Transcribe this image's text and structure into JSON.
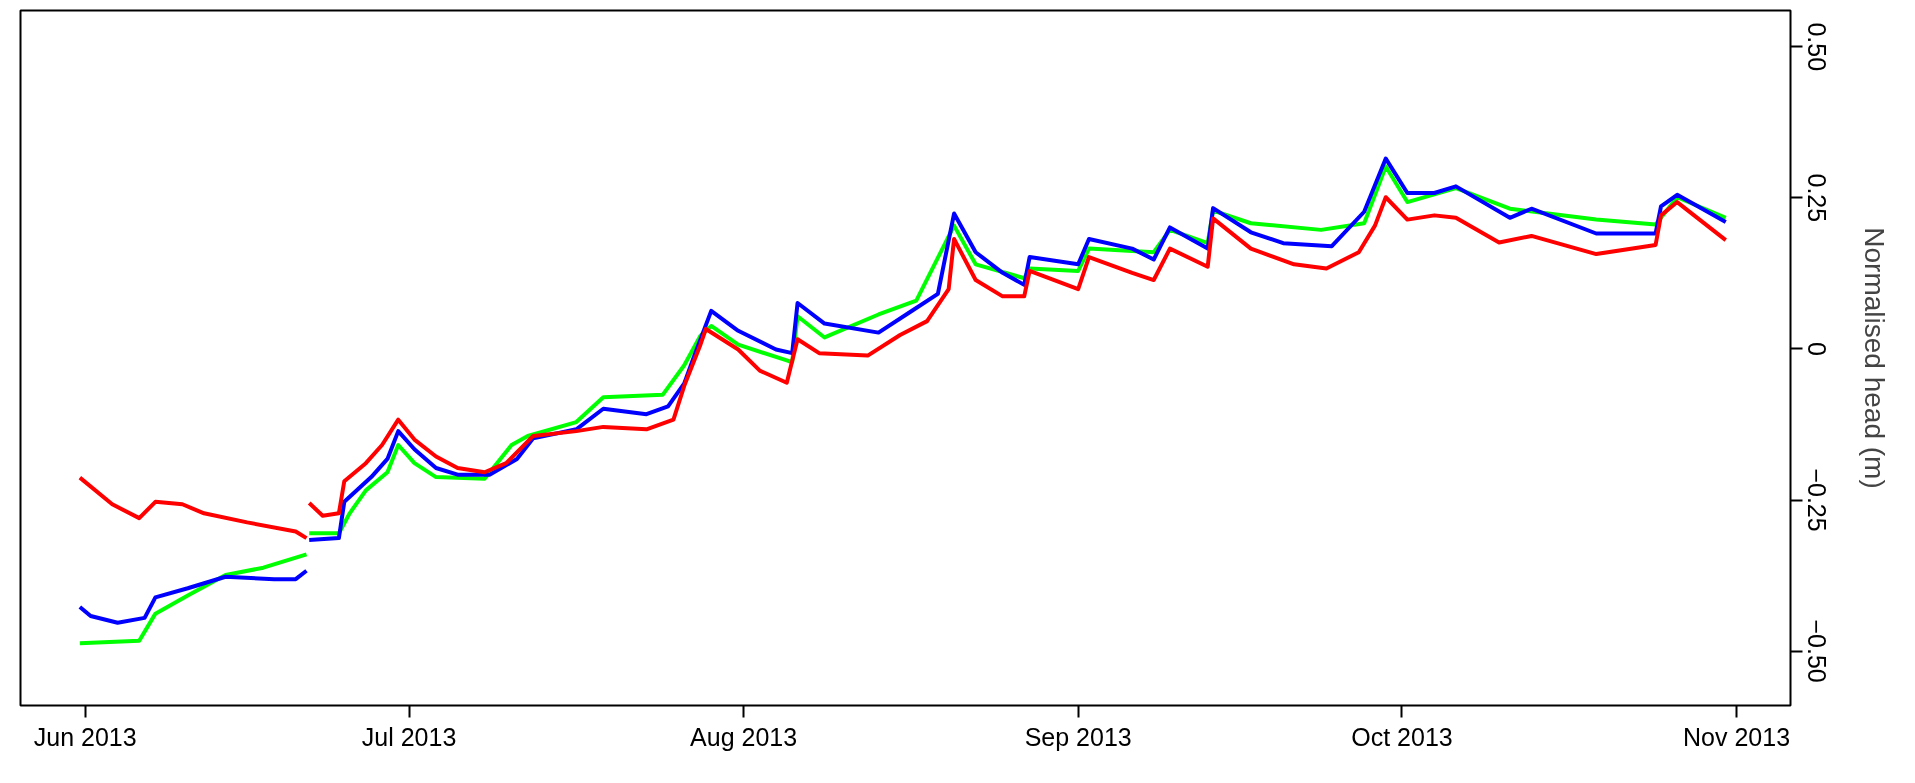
{
  "chart_data": {
    "type": "line",
    "ylabel": "Normalised head (m)",
    "xlim": [
      "2013-05-26",
      "2013-11-06"
    ],
    "xticks": [
      {
        "value": "2013-06-01",
        "label": "Jun 2013"
      },
      {
        "value": "2013-07-01",
        "label": "Jul 2013"
      },
      {
        "value": "2013-08-01",
        "label": "Aug 2013"
      },
      {
        "value": "2013-09-01",
        "label": "Sep 2013"
      },
      {
        "value": "2013-10-01",
        "label": "Oct 2013"
      },
      {
        "value": "2013-11-01",
        "label": "Nov 2013"
      }
    ],
    "ylim": [
      -0.59,
      0.56
    ],
    "yticks": [
      {
        "value": -0.5,
        "label": "−0.50"
      },
      {
        "value": -0.25,
        "label": "−0.25"
      },
      0,
      {
        "value": 0.25,
        "label": "0.25"
      },
      {
        "value": 0.5,
        "label": "0.50"
      }
    ],
    "grid": false,
    "marker": "none",
    "line_style": "solid",
    "series": [
      {
        "color": "#00ff00",
        "x": [
          "2013-05-31T12:00",
          "2013-06-06",
          "2013-06-07T12:00",
          "2013-06-10T12:00",
          "2013-06-14",
          "2013-06-17T12:00",
          "2013-06-21T12:00",
          "2013-06-21T15:00",
          "2013-06-21T18:00",
          "2013-06-24T12:00",
          "2013-06-25T12:00",
          "2013-06-27",
          "2013-06-29",
          "2013-06-30",
          "2013-07-01T12:00",
          "2013-07-03T12:00",
          "2013-07-08",
          "2013-07-10T12:00",
          "2013-07-12",
          "2013-07-16T12:00",
          "2013-07-19",
          "2013-07-24T12:00",
          "2013-07-26T12:00",
          "2013-07-28",
          "2013-07-29",
          "2013-07-31T12:00",
          "2013-08-05",
          "2013-08-05T12:00",
          "2013-08-06",
          "2013-08-08T12:00",
          "2013-08-13T12:00",
          "2013-08-17",
          "2013-08-20T12:00",
          "2013-08-22T12:00",
          "2013-08-27",
          "2013-08-27T12:00",
          "2013-09-01",
          "2013-09-02",
          "2013-09-08",
          "2013-09-09T12:00",
          "2013-09-13",
          "2013-09-13T12:00",
          "2013-09-17",
          "2013-09-23T12:00",
          "2013-09-27T12:00",
          "2013-09-29T12:00",
          "2013-10-01T12:00",
          "2013-10-06",
          "2013-10-11",
          "2013-10-19",
          "2013-10-24T12:00",
          "2013-10-26T12:00",
          "2013-10-31"
        ],
        "values": [
          -0.487,
          -0.483,
          -0.438,
          -0.408,
          -0.374,
          -0.362,
          -0.34,
          null,
          -0.305,
          -0.305,
          -0.272,
          -0.234,
          -0.204,
          -0.159,
          -0.189,
          -0.212,
          -0.215,
          -0.159,
          -0.144,
          -0.121,
          -0.08,
          -0.076,
          -0.027,
          0.022,
          0.038,
          0.007,
          -0.019,
          -0.022,
          0.054,
          0.019,
          0.057,
          0.08,
          0.204,
          0.14,
          0.117,
          0.133,
          0.129,
          0.166,
          0.16,
          0.197,
          0.175,
          0.229,
          0.208,
          0.197,
          0.208,
          0.302,
          0.243,
          0.266,
          0.232,
          0.214,
          0.206,
          0.251,
          0.217
        ]
      },
      {
        "color": "#0000ff",
        "x": [
          "2013-05-31T12:00",
          "2013-06-01T12:00",
          "2013-06-04",
          "2013-06-06T12:00",
          "2013-06-07T12:00",
          "2013-06-10T12:00",
          "2013-06-14",
          "2013-06-18T12:00",
          "2013-06-20T12:00",
          "2013-06-21T12:00",
          "2013-06-21T15:00",
          "2013-06-21T18:00",
          "2013-06-24T12:00",
          "2013-06-25",
          "2013-06-27T12:00",
          "2013-06-29",
          "2013-06-30",
          "2013-07-01T12:00",
          "2013-07-03T12:00",
          "2013-07-05T12:00",
          "2013-07-08T12:00",
          "2013-07-11",
          "2013-07-12T12:00",
          "2013-07-16T12:00",
          "2013-07-19",
          "2013-07-23",
          "2013-07-25",
          "2013-07-26T12:00",
          "2013-07-27T12:00",
          "2013-07-29",
          "2013-07-31T12:00",
          "2013-08-04",
          "2013-08-05T12:00",
          "2013-08-06",
          "2013-08-08T12:00",
          "2013-08-13T12:00",
          "2013-08-16T12:00",
          "2013-08-19",
          "2013-08-20T12:00",
          "2013-08-22T12:00",
          "2013-08-25",
          "2013-08-27",
          "2013-08-27T12:00",
          "2013-09-01",
          "2013-09-02",
          "2013-09-06",
          "2013-09-08",
          "2013-09-09T12:00",
          "2013-09-13",
          "2013-09-13T12:00",
          "2013-09-17",
          "2013-09-20",
          "2013-09-24T12:00",
          "2013-09-27T12:00",
          "2013-09-29T12:00",
          "2013-10-01T12:00",
          "2013-10-04",
          "2013-10-06",
          "2013-10-11",
          "2013-10-13",
          "2013-10-19",
          "2013-10-24T12:00",
          "2013-10-25",
          "2013-10-26T12:00",
          "2013-10-31"
        ],
        "values": [
          -0.427,
          -0.442,
          -0.453,
          -0.445,
          -0.411,
          -0.396,
          -0.377,
          -0.381,
          -0.381,
          -0.367,
          null,
          -0.316,
          -0.313,
          -0.253,
          -0.212,
          -0.182,
          -0.136,
          -0.166,
          -0.197,
          -0.208,
          -0.208,
          -0.182,
          -0.148,
          -0.133,
          -0.099,
          -0.108,
          -0.095,
          -0.057,
          -0.008,
          0.063,
          0.03,
          -0.001,
          -0.007,
          0.076,
          0.042,
          0.027,
          0.062,
          0.091,
          0.224,
          0.16,
          0.126,
          0.106,
          0.152,
          0.14,
          0.182,
          0.166,
          0.148,
          0.201,
          0.166,
          0.233,
          0.193,
          0.175,
          0.17,
          0.227,
          0.315,
          0.258,
          0.258,
          0.269,
          0.217,
          0.232,
          0.191,
          0.191,
          0.236,
          0.255,
          0.21
        ]
      },
      {
        "color": "#ff0000",
        "x": [
          "2013-05-31T12:00",
          "2013-06-03T12:00",
          "2013-06-06",
          "2013-06-07T12:00",
          "2013-06-10",
          "2013-06-12",
          "2013-06-16",
          "2013-06-20T12:00",
          "2013-06-21T12:00",
          "2013-06-21T15:00",
          "2013-06-21T18:00",
          "2013-06-23",
          "2013-06-24T12:00",
          "2013-06-25",
          "2013-06-27",
          "2013-06-28T12:00",
          "2013-06-30",
          "2013-07-01T12:00",
          "2013-07-03T12:00",
          "2013-07-05T12:00",
          "2013-07-08",
          "2013-07-10",
          "2013-07-12T12:00",
          "2013-07-16T12:00",
          "2013-07-19",
          "2013-07-23",
          "2013-07-25T12:00",
          "2013-07-26T12:00",
          "2013-07-28",
          "2013-07-28T12:00",
          "2013-07-31T12:00",
          "2013-08-02T12:00",
          "2013-08-05",
          "2013-08-06",
          "2013-08-08",
          "2013-08-12T12:00",
          "2013-08-15T12:00",
          "2013-08-18",
          "2013-08-20",
          "2013-08-20T12:00",
          "2013-08-22T12:00",
          "2013-08-25",
          "2013-08-27",
          "2013-08-27T12:00",
          "2013-09-01",
          "2013-09-02",
          "2013-09-06",
          "2013-09-08",
          "2013-09-09T12:00",
          "2013-09-13",
          "2013-09-13T12:00",
          "2013-09-17",
          "2013-09-21",
          "2013-09-24",
          "2013-09-27",
          "2013-09-28T12:00",
          "2013-09-29T12:00",
          "2013-10-01T12:00",
          "2013-10-04",
          "2013-10-06",
          "2013-10-10",
          "2013-10-13",
          "2013-10-19",
          "2013-10-24T12:00",
          "2013-10-25",
          "2013-10-26T12:00",
          "2013-10-31"
        ],
        "values": [
          -0.213,
          -0.257,
          -0.28,
          -0.253,
          -0.257,
          -0.272,
          -0.287,
          -0.302,
          -0.313,
          null,
          -0.255,
          -0.276,
          -0.272,
          -0.219,
          -0.189,
          -0.159,
          -0.117,
          -0.15,
          -0.178,
          -0.197,
          -0.204,
          -0.189,
          -0.144,
          -0.136,
          -0.129,
          -0.133,
          -0.117,
          -0.061,
          0.007,
          0.033,
          -0.001,
          -0.036,
          -0.056,
          0.016,
          -0.007,
          -0.011,
          0.023,
          0.046,
          0.099,
          0.182,
          0.114,
          0.087,
          0.087,
          0.129,
          0.099,
          0.152,
          0.126,
          0.114,
          0.166,
          0.136,
          0.216,
          0.166,
          0.14,
          0.133,
          0.16,
          0.204,
          0.251,
          0.214,
          0.221,
          0.217,
          0.176,
          0.187,
          0.157,
          0.172,
          0.221,
          0.243,
          0.18
        ]
      }
    ]
  }
}
